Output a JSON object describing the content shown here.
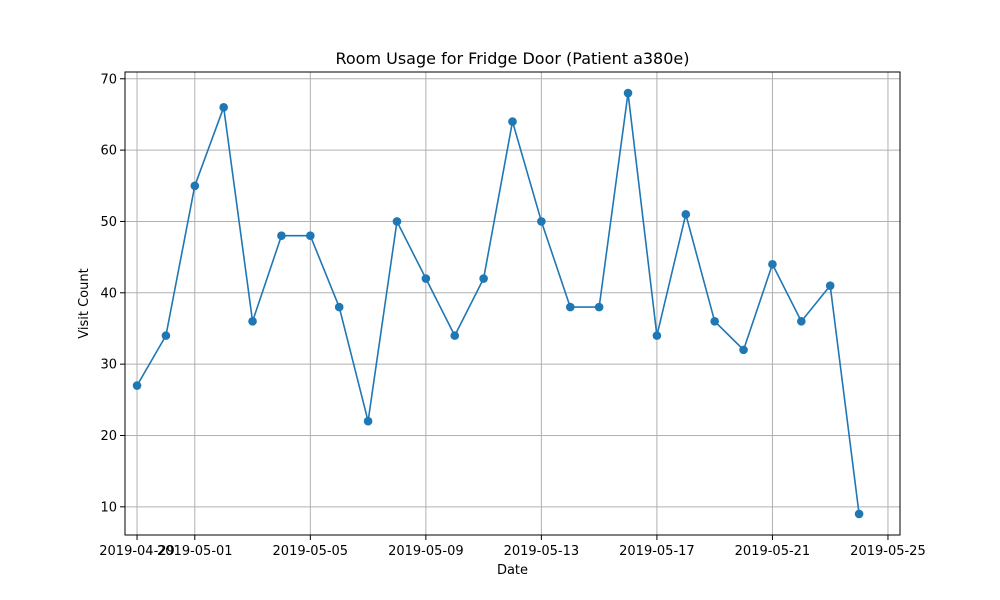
{
  "chart_data": {
    "type": "line",
    "title": "Room Usage for Fridge Door (Patient a380e)",
    "xlabel": "Date",
    "ylabel": "Visit Count",
    "x": [
      "2019-04-29",
      "2019-04-30",
      "2019-05-01",
      "2019-05-02",
      "2019-05-03",
      "2019-05-04",
      "2019-05-05",
      "2019-05-06",
      "2019-05-07",
      "2019-05-08",
      "2019-05-09",
      "2019-05-10",
      "2019-05-11",
      "2019-05-12",
      "2019-05-13",
      "2019-05-14",
      "2019-05-15",
      "2019-05-16",
      "2019-05-17",
      "2019-05-18",
      "2019-05-19",
      "2019-05-20",
      "2019-05-21",
      "2019-05-22",
      "2019-05-23",
      "2019-05-24"
    ],
    "values": [
      27,
      34,
      55,
      66,
      36,
      48,
      48,
      38,
      22,
      50,
      42,
      34,
      42,
      64,
      50,
      38,
      38,
      68,
      34,
      51,
      36,
      32,
      44,
      36,
      41,
      9
    ],
    "xlim": [
      "2019-04-28T14:00",
      "2019-05-25T10:00"
    ],
    "ylim": [
      6.05,
      70.95
    ],
    "x_ticks": [
      "2019-04-29",
      "2019-05-01",
      "2019-05-05",
      "2019-05-09",
      "2019-05-13",
      "2019-05-17",
      "2019-05-21",
      "2019-05-25"
    ],
    "y_ticks": [
      10,
      20,
      30,
      40,
      50,
      60,
      70
    ],
    "grid": true,
    "line_color": "#1f77b4",
    "marker": "circle"
  }
}
